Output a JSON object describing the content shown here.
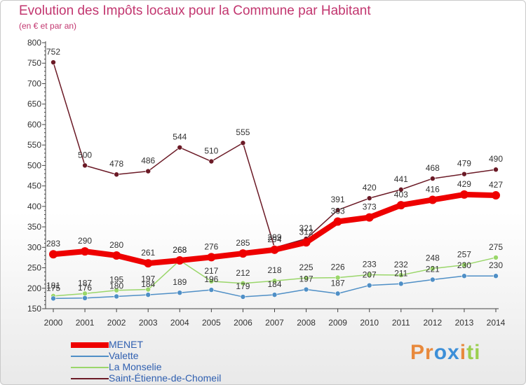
{
  "chart_data": {
    "type": "line",
    "title": "Evolution des Impôts locaux pour la Commune par Habitant",
    "subtitle": "(en € et par an)",
    "x": [
      "2000",
      "2001",
      "2002",
      "2003",
      "2004",
      "2005",
      "2006",
      "2007",
      "2008",
      "2009",
      "2010",
      "2011",
      "2012",
      "2013",
      "2014"
    ],
    "ylim": [
      150,
      800
    ],
    "yticks": [
      150,
      200,
      250,
      300,
      350,
      400,
      450,
      500,
      550,
      600,
      650,
      700,
      750,
      800
    ],
    "grid": false,
    "legend_position": "bottom-left",
    "series": [
      {
        "name": "Saint-Étienne-de-Chomeil",
        "color": "#6b1a26",
        "values": [
          752,
          500,
          478,
          486,
          544,
          510,
          555,
          299,
          321,
          391,
          420,
          441,
          468,
          479,
          490
        ]
      },
      {
        "name": "La Monselie",
        "color": "#9ad66a",
        "values": [
          181,
          187,
          195,
          197,
          268,
          217,
          212,
          218,
          225,
          226,
          233,
          232,
          248,
          257,
          275
        ]
      },
      {
        "name": "Valette",
        "color": "#4f8fc6",
        "values": [
          175,
          176,
          180,
          184,
          189,
          196,
          179,
          184,
          197,
          187,
          207,
          211,
          221,
          230,
          230
        ]
      },
      {
        "name": "MENET",
        "color": "#ee0000",
        "values": [
          283,
          290,
          280,
          261,
          268,
          276,
          285,
          294,
          312,
          363,
          373,
          403,
          416,
          429,
          427
        ]
      }
    ]
  },
  "legend": [
    "MENET",
    "Valette",
    "La Monselie",
    "Saint-Étienne-de-Chomeil"
  ],
  "logo": {
    "text": "Proxiti",
    "letters": [
      "P",
      "r",
      "o",
      "x",
      "i",
      "t",
      "i"
    ],
    "colors": [
      "#e8893c",
      "#e8893c",
      "#3c8fd8",
      "#3c8fd8",
      "#e8893c",
      "#9bcf4e",
      "#9bcf4e"
    ]
  }
}
